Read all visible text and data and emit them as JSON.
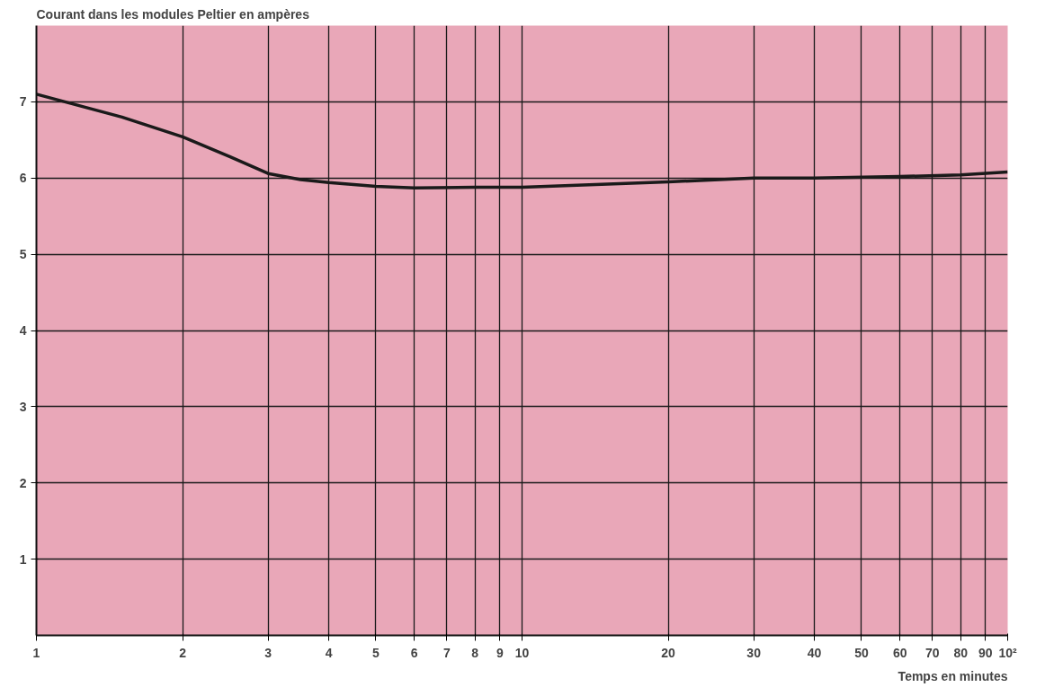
{
  "chart_data": {
    "type": "line",
    "ylabel": "Courant dans les modules Peltier en ampères",
    "xlabel": "Temps en minutes",
    "log": "x",
    "x": [
      1,
      1.5,
      2,
      2.5,
      3,
      3.5,
      4,
      5,
      6,
      8,
      10,
      15,
      20,
      30,
      40,
      60,
      80,
      100
    ],
    "series": [
      {
        "color": "#1a1a1a",
        "values": [
          7.1,
          6.8,
          6.54,
          6.28,
          6.06,
          5.98,
          5.94,
          5.89,
          5.87,
          5.88,
          5.88,
          5.92,
          5.95,
          6.0,
          6.0,
          6.02,
          6.04,
          6.08
        ]
      }
    ],
    "xlim": [
      1,
      100
    ],
    "ylim": [
      0,
      8
    ],
    "xticks": [
      1,
      2,
      3,
      4,
      5,
      6,
      7,
      8,
      9,
      10,
      20,
      30,
      40,
      50,
      60,
      70,
      80,
      90,
      {
        "value": 100,
        "label": "10²"
      }
    ],
    "yticks": [
      1,
      2,
      3,
      4,
      5,
      6,
      7
    ],
    "grid": true
  }
}
